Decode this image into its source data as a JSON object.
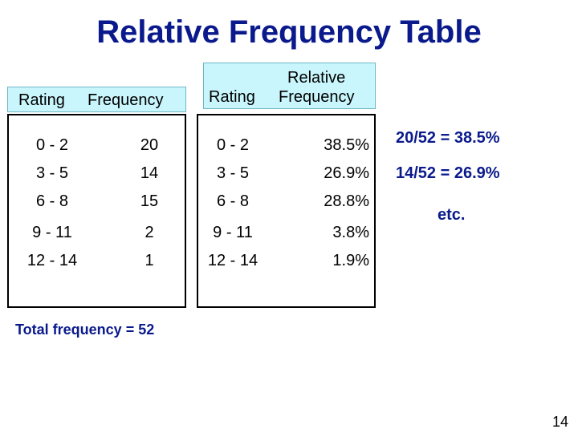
{
  "slide": {
    "title": "Relative Frequency Table",
    "page_number": "14"
  },
  "frequency_table": {
    "headers": [
      "Rating",
      "Frequency"
    ],
    "rows": [
      {
        "rating": "0 - 2",
        "value": "20"
      },
      {
        "rating": "3 - 5",
        "value": "14"
      },
      {
        "rating": "6 - 8",
        "value": "15"
      },
      {
        "rating": "9 - 11",
        "value": "2"
      },
      {
        "rating": "12 - 14",
        "value": "1"
      }
    ]
  },
  "relative_table": {
    "header_rating": "Rating",
    "header_line1": "Relative",
    "header_line2": "Frequency",
    "rows": [
      {
        "rating": "0 - 2",
        "value": "38.5%"
      },
      {
        "rating": "3 - 5",
        "value": "26.9%"
      },
      {
        "rating": "6 - 8",
        "value": "28.8%"
      },
      {
        "rating": "9 - 11",
        "value": "3.8%"
      },
      {
        "rating": "12 - 14",
        "value": "1.9%"
      }
    ]
  },
  "notes": [
    "20/52 = 38.5%",
    "14/52 = 26.9%",
    "etc."
  ],
  "total_text": "Total frequency = 52"
}
